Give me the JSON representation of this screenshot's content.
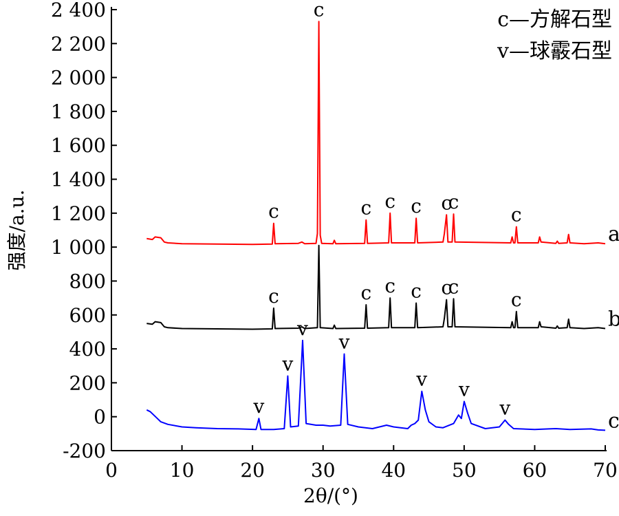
{
  "chart_data": {
    "type": "line",
    "xlabel": "2θ/(°)",
    "ylabel": "强度/a.u.",
    "xlim": [
      0,
      70
    ],
    "ylim": [
      -200,
      2400
    ],
    "xticks": [
      0,
      10,
      20,
      30,
      40,
      50,
      60,
      70
    ],
    "yticks": [
      -200,
      0,
      200,
      400,
      600,
      800,
      1000,
      1200,
      1400,
      1600,
      1800,
      2000,
      2200,
      2400
    ],
    "ytick_labels": [
      "-200",
      "0",
      "200",
      "400",
      "600",
      "800",
      "1 000",
      "1 200",
      "1 400",
      "1 600",
      "1 800",
      "2 000",
      "2 200",
      "2 400"
    ],
    "grid": false,
    "legend": {
      "position": "top-right",
      "entries": [
        "c—方解石型",
        "v—球霰石型"
      ]
    },
    "series": [
      {
        "name": "a",
        "color": "#ff0000",
        "baseline": 1020,
        "points": [
          [
            5,
            1050
          ],
          [
            5.8,
            1045
          ],
          [
            6.2,
            1060
          ],
          [
            7,
            1055
          ],
          [
            7.5,
            1030
          ],
          [
            8,
            1025
          ],
          [
            10,
            1020
          ],
          [
            15,
            1018
          ],
          [
            20,
            1016
          ],
          [
            22.8,
            1018
          ],
          [
            23.0,
            1140
          ],
          [
            23.2,
            1020
          ],
          [
            26.5,
            1022
          ],
          [
            27.0,
            1030
          ],
          [
            27.4,
            1020
          ],
          [
            29.0,
            1022
          ],
          [
            29.2,
            1080
          ],
          [
            29.4,
            2330
          ],
          [
            29.6,
            1070
          ],
          [
            29.8,
            1022
          ],
          [
            31.4,
            1020
          ],
          [
            31.6,
            1040
          ],
          [
            31.8,
            1020
          ],
          [
            35.9,
            1022
          ],
          [
            36.1,
            1160
          ],
          [
            36.3,
            1022
          ],
          [
            39.3,
            1025
          ],
          [
            39.5,
            1200
          ],
          [
            39.7,
            1025
          ],
          [
            43.0,
            1025
          ],
          [
            43.2,
            1170
          ],
          [
            43.4,
            1025
          ],
          [
            47.0,
            1030
          ],
          [
            47.2,
            1080
          ],
          [
            47.5,
            1190
          ],
          [
            47.7,
            1030
          ],
          [
            48.3,
            1030
          ],
          [
            48.5,
            1195
          ],
          [
            48.7,
            1030
          ],
          [
            56.6,
            1025
          ],
          [
            56.8,
            1060
          ],
          [
            57.0,
            1025
          ],
          [
            57.2,
            1025
          ],
          [
            57.4,
            1120
          ],
          [
            57.6,
            1025
          ],
          [
            60.5,
            1025
          ],
          [
            60.7,
            1060
          ],
          [
            60.9,
            1030
          ],
          [
            63.0,
            1022
          ],
          [
            63.2,
            1035
          ],
          [
            63.4,
            1022
          ],
          [
            64.6,
            1025
          ],
          [
            64.8,
            1075
          ],
          [
            65.0,
            1025
          ],
          [
            67,
            1020
          ],
          [
            69,
            1025
          ],
          [
            70,
            1020
          ]
        ],
        "peaks": [
          {
            "x": 23.0,
            "y": 1140,
            "label": "c"
          },
          {
            "x": 29.4,
            "y": 2330,
            "label": "c"
          },
          {
            "x": 36.1,
            "y": 1160,
            "label": "c"
          },
          {
            "x": 39.5,
            "y": 1200,
            "label": "c"
          },
          {
            "x": 43.2,
            "y": 1170,
            "label": "c"
          },
          {
            "x": 47.5,
            "y": 1190,
            "label": "c"
          },
          {
            "x": 48.5,
            "y": 1195,
            "label": "c"
          },
          {
            "x": 57.4,
            "y": 1120,
            "label": "c"
          }
        ]
      },
      {
        "name": "b",
        "color": "#000000",
        "baseline": 520,
        "points": [
          [
            5,
            550
          ],
          [
            5.8,
            545
          ],
          [
            6.2,
            560
          ],
          [
            7,
            555
          ],
          [
            7.5,
            530
          ],
          [
            8,
            525
          ],
          [
            10,
            520
          ],
          [
            15,
            518
          ],
          [
            20,
            516
          ],
          [
            22.8,
            518
          ],
          [
            23.0,
            640
          ],
          [
            23.2,
            520
          ],
          [
            26.5,
            522
          ],
          [
            27.0,
            530
          ],
          [
            27.4,
            520
          ],
          [
            29.2,
            525
          ],
          [
            29.4,
            1010
          ],
          [
            29.6,
            525
          ],
          [
            31.4,
            520
          ],
          [
            31.6,
            540
          ],
          [
            31.8,
            520
          ],
          [
            35.9,
            522
          ],
          [
            36.1,
            660
          ],
          [
            36.3,
            522
          ],
          [
            39.3,
            525
          ],
          [
            39.5,
            700
          ],
          [
            39.7,
            525
          ],
          [
            43.0,
            525
          ],
          [
            43.2,
            670
          ],
          [
            43.4,
            525
          ],
          [
            47.0,
            530
          ],
          [
            47.2,
            580
          ],
          [
            47.5,
            690
          ],
          [
            47.7,
            530
          ],
          [
            48.3,
            530
          ],
          [
            48.5,
            695
          ],
          [
            48.7,
            530
          ],
          [
            56.6,
            525
          ],
          [
            56.8,
            560
          ],
          [
            57.0,
            525
          ],
          [
            57.2,
            525
          ],
          [
            57.4,
            620
          ],
          [
            57.6,
            525
          ],
          [
            60.5,
            525
          ],
          [
            60.7,
            560
          ],
          [
            60.9,
            530
          ],
          [
            63.0,
            522
          ],
          [
            63.2,
            535
          ],
          [
            63.4,
            522
          ],
          [
            64.6,
            525
          ],
          [
            64.8,
            575
          ],
          [
            65.0,
            525
          ],
          [
            67,
            520
          ],
          [
            69,
            525
          ],
          [
            70,
            520
          ]
        ],
        "peaks": [
          {
            "x": 23.0,
            "y": 640,
            "label": "c"
          },
          {
            "x": 36.1,
            "y": 660,
            "label": "c"
          },
          {
            "x": 39.5,
            "y": 700,
            "label": "c"
          },
          {
            "x": 43.2,
            "y": 670,
            "label": "c"
          },
          {
            "x": 47.5,
            "y": 690,
            "label": "c"
          },
          {
            "x": 48.5,
            "y": 695,
            "label": "c"
          },
          {
            "x": 57.4,
            "y": 620,
            "label": "c"
          }
        ]
      },
      {
        "name": "c",
        "color": "#0000ff",
        "baseline": -80,
        "points": [
          [
            5,
            40
          ],
          [
            5.5,
            30
          ],
          [
            6,
            10
          ],
          [
            6.5,
            -10
          ],
          [
            7,
            -30
          ],
          [
            8,
            -45
          ],
          [
            10,
            -60
          ],
          [
            12,
            -65
          ],
          [
            15,
            -70
          ],
          [
            18,
            -72
          ],
          [
            20.5,
            -75
          ],
          [
            20.9,
            -10
          ],
          [
            21.2,
            -75
          ],
          [
            23,
            -75
          ],
          [
            24.5,
            -70
          ],
          [
            25.0,
            240
          ],
          [
            25.4,
            -60
          ],
          [
            26.5,
            -55
          ],
          [
            27.1,
            450
          ],
          [
            27.6,
            -40
          ],
          [
            29,
            -50
          ],
          [
            30,
            -50
          ],
          [
            31,
            -55
          ],
          [
            32.5,
            -50
          ],
          [
            33.0,
            370
          ],
          [
            33.5,
            -45
          ],
          [
            35,
            -60
          ],
          [
            37,
            -70
          ],
          [
            39,
            -50
          ],
          [
            40,
            -60
          ],
          [
            42,
            -70
          ],
          [
            42.5,
            -50
          ],
          [
            43,
            -40
          ],
          [
            43.5,
            -20
          ],
          [
            44.0,
            150
          ],
          [
            44.5,
            40
          ],
          [
            45,
            -30
          ],
          [
            46,
            -60
          ],
          [
            47,
            -65
          ],
          [
            48.5,
            -40
          ],
          [
            49.2,
            10
          ],
          [
            49.6,
            -10
          ],
          [
            50.0,
            90
          ],
          [
            50.5,
            20
          ],
          [
            51,
            -40
          ],
          [
            53,
            -70
          ],
          [
            55,
            -60
          ],
          [
            55.8,
            -20
          ],
          [
            56.3,
            -45
          ],
          [
            57,
            -70
          ],
          [
            60,
            -75
          ],
          [
            62,
            -72
          ],
          [
            63,
            -70
          ],
          [
            65,
            -75
          ],
          [
            68,
            -72
          ],
          [
            69,
            -78
          ],
          [
            70,
            -80
          ]
        ],
        "peaks": [
          {
            "x": 20.9,
            "y": -10,
            "label": "v"
          },
          {
            "x": 25.0,
            "y": 240,
            "label": "v"
          },
          {
            "x": 27.1,
            "y": 450,
            "label": "v"
          },
          {
            "x": 33.0,
            "y": 370,
            "label": "v"
          },
          {
            "x": 44.0,
            "y": 150,
            "label": "v"
          },
          {
            "x": 50.0,
            "y": 90,
            "label": "v"
          },
          {
            "x": 55.8,
            "y": -20,
            "label": "v"
          }
        ]
      }
    ]
  }
}
